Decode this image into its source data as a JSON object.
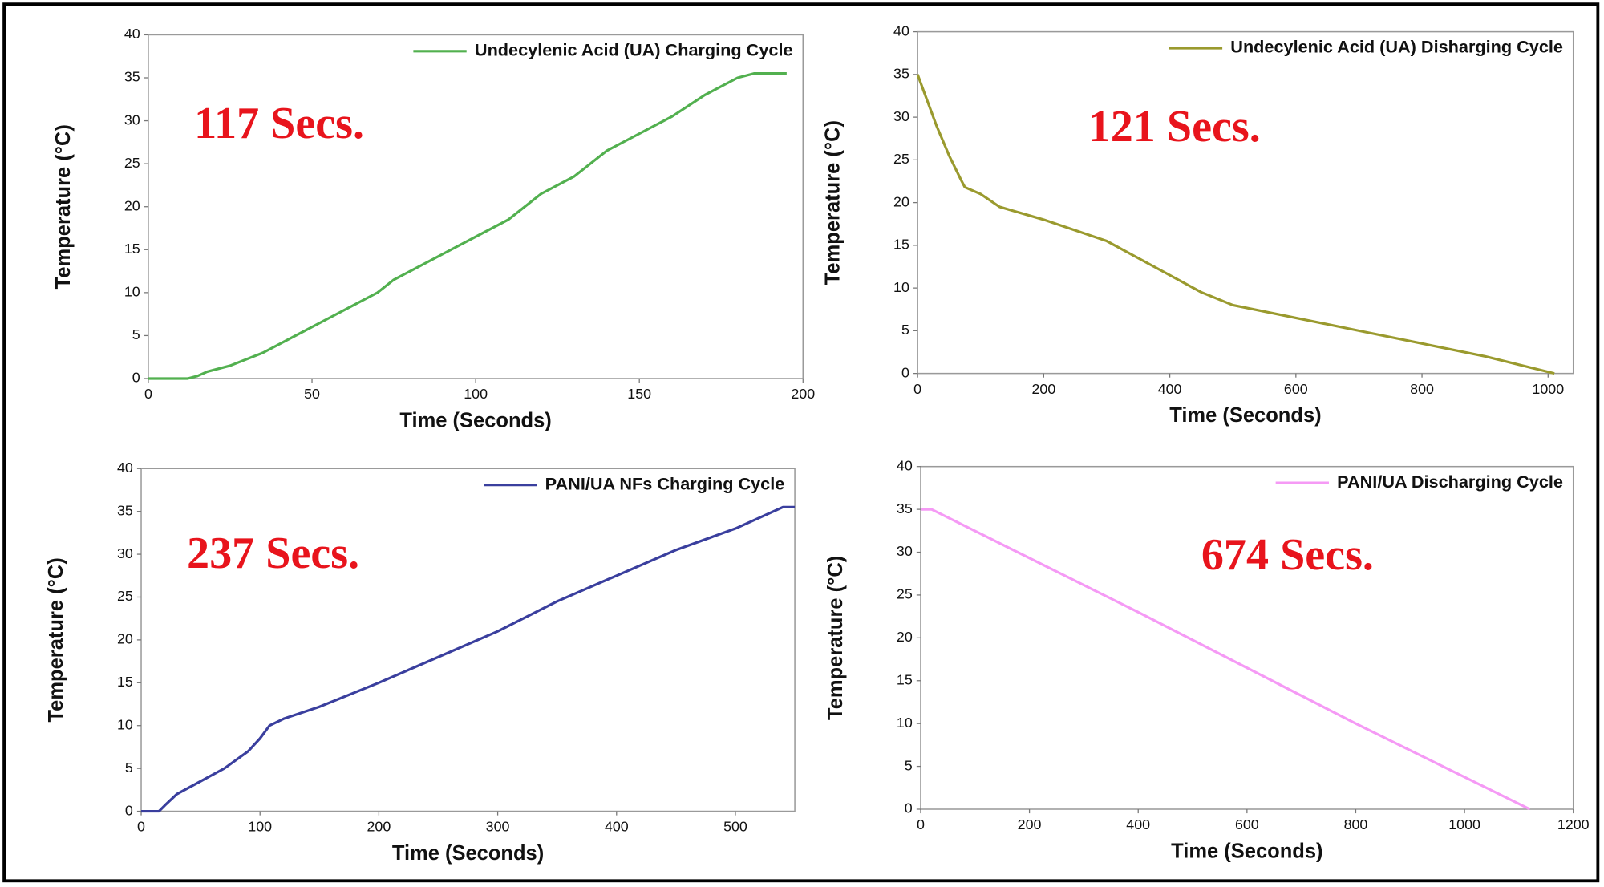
{
  "chart_data": [
    {
      "type": "line",
      "annotation": "117 Secs.",
      "xlabel": "Time (Seconds)",
      "ylabel": "Temperature (°C)",
      "legend": "upper right",
      "xlim": [
        0,
        200
      ],
      "ylim": [
        0,
        40
      ],
      "xticks": [
        0,
        50,
        100,
        150,
        200
      ],
      "yticks": [
        0,
        5,
        10,
        15,
        20,
        25,
        30,
        35,
        40
      ],
      "x": [
        0,
        12,
        15,
        18,
        25,
        35,
        45,
        55,
        70,
        75,
        90,
        100,
        110,
        120,
        130,
        140,
        150,
        160,
        170,
        180,
        185,
        195
      ],
      "series": [
        {
          "name": "Undecylenic Acid (UA) Charging Cycle",
          "color": "#52b04f",
          "values": [
            0,
            0,
            0.3,
            0.8,
            1.5,
            3,
            5,
            7,
            10,
            11.5,
            14.5,
            16.5,
            18.5,
            21.5,
            23.5,
            26.5,
            28.5,
            30.5,
            33,
            35,
            35.5,
            35.5
          ]
        }
      ]
    },
    {
      "type": "line",
      "annotation": "121 Secs.",
      "xlabel": "Time (Seconds)",
      "ylabel": "Temperature (°C)",
      "legend": "upper right",
      "xlim": [
        0,
        1040
      ],
      "ylim": [
        0,
        40
      ],
      "xticks": [
        0,
        200,
        400,
        600,
        800,
        1000
      ],
      "yticks": [
        0,
        5,
        10,
        15,
        20,
        25,
        30,
        35,
        40
      ],
      "x": [
        0,
        10,
        30,
        50,
        70,
        75,
        100,
        130,
        200,
        300,
        400,
        450,
        500,
        600,
        700,
        800,
        900,
        1010
      ],
      "series": [
        {
          "name": "Undecylenic Acid (UA) Disharging Cycle",
          "color": "#9a9a2e",
          "values": [
            35,
            33,
            29,
            25.5,
            22.5,
            21.8,
            21,
            19.5,
            18,
            15.5,
            11.5,
            9.5,
            8,
            6.5,
            5,
            3.5,
            2,
            0
          ]
        }
      ]
    },
    {
      "type": "line",
      "annotation": "237 Secs.",
      "xlabel": "Time (Seconds)",
      "ylabel": "Temperature (°C)",
      "legend": "upper right",
      "xlim": [
        0,
        550
      ],
      "ylim": [
        0,
        40
      ],
      "xticks": [
        0,
        100,
        200,
        300,
        400,
        500
      ],
      "yticks": [
        0,
        5,
        10,
        15,
        20,
        25,
        30,
        35,
        40
      ],
      "x": [
        0,
        15,
        20,
        30,
        50,
        70,
        90,
        100,
        108,
        120,
        150,
        200,
        250,
        300,
        350,
        400,
        450,
        500,
        540,
        550
      ],
      "series": [
        {
          "name": "PANI/UA NFs Charging Cycle",
          "color": "#3a3f9e",
          "values": [
            0,
            0,
            0.7,
            2,
            3.5,
            5,
            7,
            8.5,
            10,
            10.8,
            12.2,
            15,
            18,
            21,
            24.5,
            27.5,
            30.5,
            33,
            35.5,
            35.5
          ]
        }
      ]
    },
    {
      "type": "line",
      "annotation": "674 Secs.",
      "xlabel": "Time (Seconds)",
      "ylabel": "Temperature (°C)",
      "legend": "upper right",
      "xlim": [
        0,
        1200
      ],
      "ylim": [
        0,
        40
      ],
      "xticks": [
        0,
        200,
        400,
        600,
        800,
        1000,
        1200
      ],
      "yticks": [
        0,
        5,
        10,
        15,
        20,
        25,
        30,
        35,
        40
      ],
      "x": [
        0,
        20,
        400,
        800,
        1120
      ],
      "series": [
        {
          "name": "PANI/UA Discharging Cycle",
          "color": "#f59af5",
          "values": [
            35,
            35,
            23,
            10,
            0
          ]
        }
      ]
    }
  ]
}
